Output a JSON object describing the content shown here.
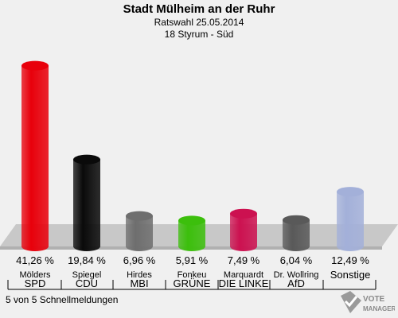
{
  "header": {
    "title": "Stadt Mülheim an der Ruhr",
    "election": "Ratswahl 25.05.2014",
    "district": "18 Styrum - Süd"
  },
  "chart_data": {
    "type": "bar",
    "title": "Stadt Mülheim an der Ruhr",
    "subtitle": "Ratswahl 25.05.2014 — 18 Styrum - Süd",
    "xlabel": "",
    "ylabel": "",
    "ylim": [
      0,
      45
    ],
    "grid": false,
    "bars": [
      {
        "candidate": "Mölders",
        "party": "SPD",
        "value": 41.26,
        "label": "41,26 %",
        "color": "#e8000b"
      },
      {
        "candidate": "Spiegel",
        "party": "CDU",
        "value": 19.84,
        "label": "19,84 %",
        "color": "#0a0a0a"
      },
      {
        "candidate": "Hirdes",
        "party": "MBI",
        "value": 6.96,
        "label": "6,96 %",
        "color": "#6e6e6e"
      },
      {
        "candidate": "Fonkeu",
        "party": "GRÜNE",
        "value": 5.91,
        "label": "5,91 %",
        "color": "#3cbf0c"
      },
      {
        "candidate": "Marquardt",
        "party": "DIE LINKE",
        "value": 7.49,
        "label": "7,49 %",
        "color": "#cc1150"
      },
      {
        "candidate": "Dr. Wollring",
        "party": "AfD",
        "value": 6.04,
        "label": "6,04 %",
        "color": "#595959"
      },
      {
        "candidate": "",
        "party": "Sonstige",
        "value": 12.49,
        "label": "12,49 %",
        "color": "#a3b0d9"
      }
    ]
  },
  "footer": {
    "status": "5 von 5 Schnellmeldungen"
  },
  "logo": {
    "text": "VOTE MANAGER",
    "icon": "ballot-check-icon"
  }
}
